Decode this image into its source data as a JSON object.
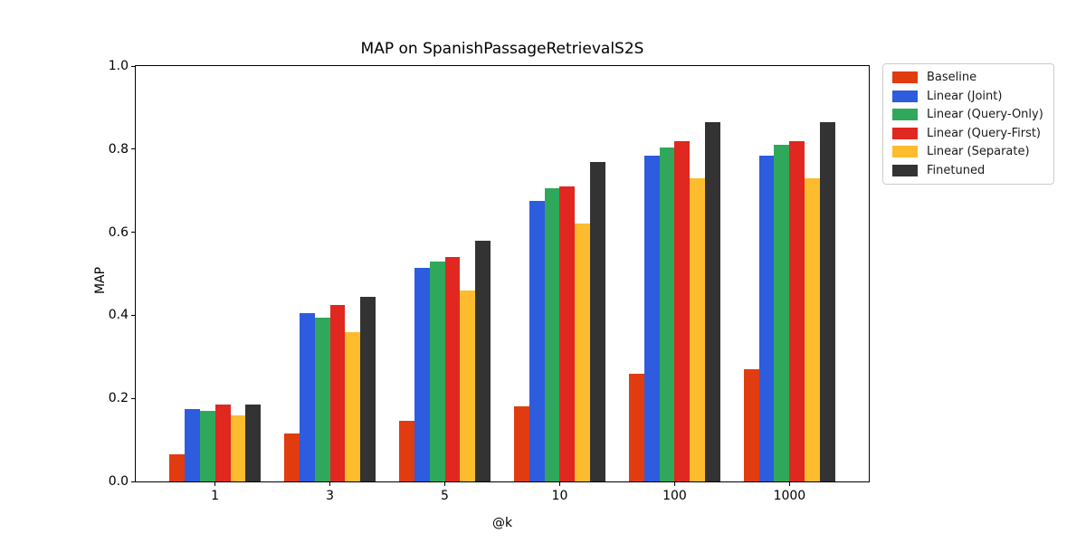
{
  "chart_data": {
    "type": "bar",
    "title": "MAP on SpanishPassageRetrievalS2S",
    "xlabel": "@k",
    "ylabel": "MAP",
    "categories": [
      "1",
      "3",
      "5",
      "10",
      "100",
      "1000"
    ],
    "ylim": [
      0.0,
      1.0
    ],
    "yticks": [
      "0.0",
      "0.2",
      "0.4",
      "0.6",
      "0.8",
      "1.0"
    ],
    "grid": false,
    "legend_position": "outside-upper-right",
    "series": [
      {
        "name": "Baseline",
        "color": "#e03c10",
        "values": [
          0.065,
          0.115,
          0.145,
          0.18,
          0.26,
          0.27
        ]
      },
      {
        "name": "Linear (Joint)",
        "color": "#2d5cdf",
        "values": [
          0.175,
          0.405,
          0.515,
          0.675,
          0.785,
          0.785
        ]
      },
      {
        "name": "Linear (Query-Only)",
        "color": "#2fa85c",
        "values": [
          0.17,
          0.395,
          0.53,
          0.705,
          0.805,
          0.81
        ]
      },
      {
        "name": "Linear (Query-First)",
        "color": "#e02720",
        "values": [
          0.185,
          0.425,
          0.54,
          0.71,
          0.82,
          0.82
        ]
      },
      {
        "name": "Linear (Separate)",
        "color": "#fcbc2e",
        "values": [
          0.16,
          0.36,
          0.46,
          0.62,
          0.73,
          0.73
        ]
      },
      {
        "name": "Finetuned",
        "color": "#333333",
        "values": [
          0.185,
          0.445,
          0.58,
          0.77,
          0.865,
          0.865
        ]
      }
    ]
  }
}
